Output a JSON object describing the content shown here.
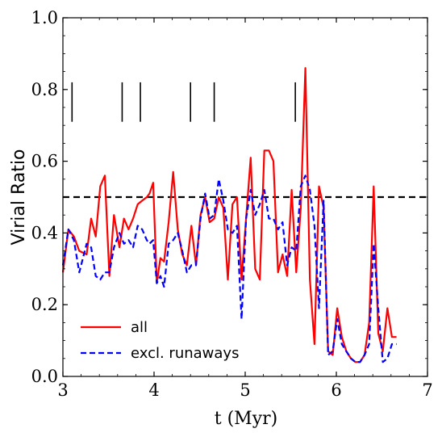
{
  "chart_data": {
    "type": "line",
    "xlabel": "t (Myr)",
    "ylabel": "Virial Ratio",
    "xlim": [
      3,
      7
    ],
    "ylim": [
      0,
      1.0
    ],
    "xticks": [
      "3",
      "4",
      "5",
      "6",
      "7"
    ],
    "yticks": [
      "0.0",
      "0.2",
      "0.4",
      "0.6",
      "0.8",
      "1.0"
    ],
    "grid": false,
    "legend_position": "lower-left",
    "reference_line": {
      "y": 0.5,
      "style": "dashed",
      "color": "#000000"
    },
    "event_markers": {
      "x": [
        3.1,
        3.65,
        3.85,
        4.4,
        4.66,
        5.55
      ],
      "y_range": [
        0.71,
        0.82
      ],
      "color": "#000000"
    },
    "series": [
      {
        "name": "all",
        "color": "#ff0000",
        "style": "solid",
        "x": [
          3.0,
          3.06,
          3.12,
          3.18,
          3.26,
          3.31,
          3.36,
          3.41,
          3.46,
          3.51,
          3.56,
          3.62,
          3.67,
          3.72,
          3.77,
          3.82,
          3.87,
          3.92,
          3.95,
          3.99,
          4.03,
          4.07,
          4.11,
          4.16,
          4.21,
          4.26,
          4.31,
          4.36,
          4.41,
          4.46,
          4.51,
          4.56,
          4.61,
          4.66,
          4.71,
          4.76,
          4.81,
          4.86,
          4.91,
          4.96,
          5.01,
          5.06,
          5.11,
          5.16,
          5.21,
          5.26,
          5.31,
          5.36,
          5.41,
          5.46,
          5.51,
          5.56,
          5.61,
          5.66,
          5.71,
          5.76,
          5.81,
          5.86,
          5.91,
          5.96,
          6.01,
          6.06,
          6.11,
          6.16,
          6.21,
          6.26,
          6.31,
          6.36,
          6.41,
          6.46,
          6.51,
          6.56,
          6.61,
          6.66
        ],
        "y": [
          0.29,
          0.41,
          0.39,
          0.35,
          0.34,
          0.44,
          0.39,
          0.53,
          0.56,
          0.28,
          0.45,
          0.36,
          0.44,
          0.41,
          0.44,
          0.48,
          0.49,
          0.5,
          0.51,
          0.54,
          0.26,
          0.33,
          0.32,
          0.43,
          0.57,
          0.41,
          0.34,
          0.31,
          0.42,
          0.31,
          0.45,
          0.5,
          0.43,
          0.44,
          0.5,
          0.47,
          0.27,
          0.48,
          0.5,
          0.27,
          0.44,
          0.61,
          0.3,
          0.27,
          0.63,
          0.63,
          0.6,
          0.29,
          0.34,
          0.28,
          0.52,
          0.29,
          0.47,
          0.86,
          0.27,
          0.09,
          0.53,
          0.47,
          0.07,
          0.06,
          0.19,
          0.11,
          0.07,
          0.05,
          0.04,
          0.04,
          0.06,
          0.15,
          0.53,
          0.12,
          0.07,
          0.19,
          0.11,
          0.11
        ]
      },
      {
        "name": "excl. runaways",
        "color": "#0000ff",
        "style": "dashed",
        "x": [
          3.0,
          3.06,
          3.12,
          3.18,
          3.26,
          3.31,
          3.36,
          3.41,
          3.46,
          3.51,
          3.56,
          3.62,
          3.67,
          3.72,
          3.77,
          3.82,
          3.87,
          3.92,
          3.95,
          3.99,
          4.03,
          4.07,
          4.11,
          4.16,
          4.21,
          4.26,
          4.31,
          4.36,
          4.41,
          4.46,
          4.51,
          4.56,
          4.61,
          4.66,
          4.71,
          4.76,
          4.81,
          4.86,
          4.91,
          4.96,
          5.01,
          5.06,
          5.11,
          5.16,
          5.21,
          5.26,
          5.31,
          5.36,
          5.41,
          5.46,
          5.51,
          5.56,
          5.61,
          5.66,
          5.71,
          5.76,
          5.81,
          5.86,
          5.91,
          5.96,
          6.01,
          6.06,
          6.11,
          6.16,
          6.21,
          6.26,
          6.31,
          6.36,
          6.41,
          6.46,
          6.51,
          6.56,
          6.61,
          6.66
        ],
        "y": [
          0.31,
          0.41,
          0.38,
          0.29,
          0.37,
          0.36,
          0.28,
          0.27,
          0.29,
          0.29,
          0.36,
          0.4,
          0.37,
          0.38,
          0.36,
          0.42,
          0.41,
          0.38,
          0.37,
          0.38,
          0.26,
          0.28,
          0.25,
          0.37,
          0.38,
          0.4,
          0.35,
          0.29,
          0.31,
          0.31,
          0.44,
          0.51,
          0.44,
          0.45,
          0.55,
          0.49,
          0.41,
          0.4,
          0.42,
          0.16,
          0.44,
          0.52,
          0.45,
          0.48,
          0.52,
          0.44,
          0.44,
          0.41,
          0.43,
          0.31,
          0.36,
          0.35,
          0.53,
          0.56,
          0.52,
          0.42,
          0.19,
          0.49,
          0.06,
          0.07,
          0.16,
          0.09,
          0.07,
          0.05,
          0.04,
          0.04,
          0.06,
          0.09,
          0.37,
          0.19,
          0.04,
          0.05,
          0.09,
          0.09
        ]
      }
    ]
  }
}
